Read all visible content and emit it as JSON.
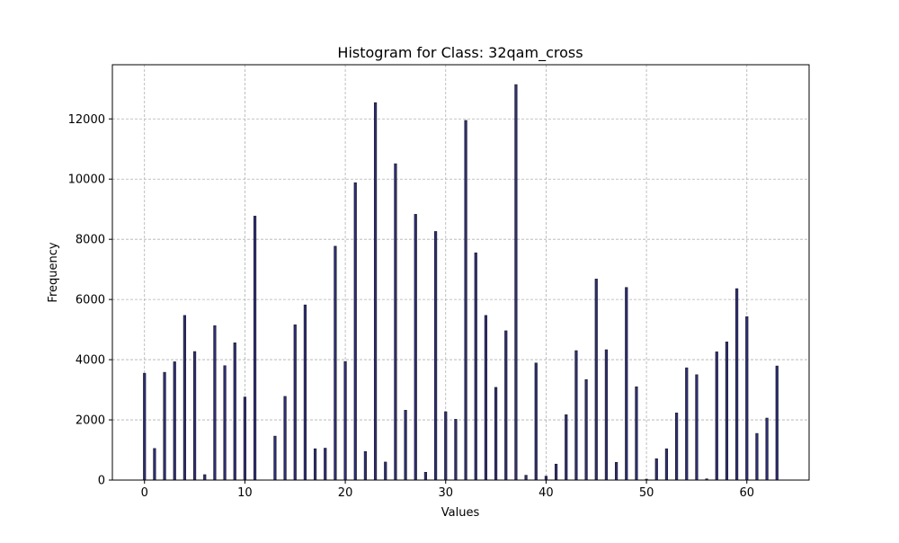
{
  "chart_data": {
    "type": "bar",
    "title": "Histogram for Class: 32qam_cross",
    "xlabel": "Values",
    "ylabel": "Frequency",
    "xlim": [
      -3.2,
      66.2
    ],
    "ylim": [
      0,
      13800
    ],
    "xticks": [
      0,
      10,
      20,
      30,
      40,
      50,
      60
    ],
    "yticks": [
      0,
      2000,
      4000,
      6000,
      8000,
      10000,
      12000
    ],
    "grid": true,
    "bar_color": "#2e2e78",
    "x": [
      0,
      1,
      2,
      3,
      4,
      5,
      6,
      7,
      8,
      9,
      10,
      11,
      12,
      13,
      14,
      15,
      16,
      17,
      18,
      19,
      20,
      21,
      22,
      23,
      24,
      25,
      26,
      27,
      28,
      29,
      30,
      31,
      32,
      33,
      34,
      35,
      36,
      37,
      38,
      39,
      40,
      41,
      42,
      43,
      44,
      45,
      46,
      47,
      48,
      49,
      50,
      51,
      52,
      53,
      54,
      55,
      56,
      57,
      58,
      59,
      60,
      61,
      62,
      63
    ],
    "values": [
      3550,
      1050,
      3580,
      3930,
      5470,
      4270,
      180,
      5130,
      3800,
      4560,
      2760,
      8770,
      0,
      1460,
      2780,
      5160,
      5820,
      1040,
      1060,
      7770,
      3940,
      9880,
      950,
      12540,
      600,
      10510,
      2320,
      8830,
      260,
      8260,
      2270,
      2020,
      11950,
      7550,
      5470,
      3080,
      4960,
      13140,
      160,
      3890,
      130,
      530,
      2170,
      4300,
      3340,
      6680,
      4330,
      590,
      6400,
      3100,
      30,
      710,
      1040,
      2230,
      3730,
      3500,
      40,
      4260,
      4590,
      6360,
      5430,
      1550,
      2060,
      3790
    ]
  }
}
